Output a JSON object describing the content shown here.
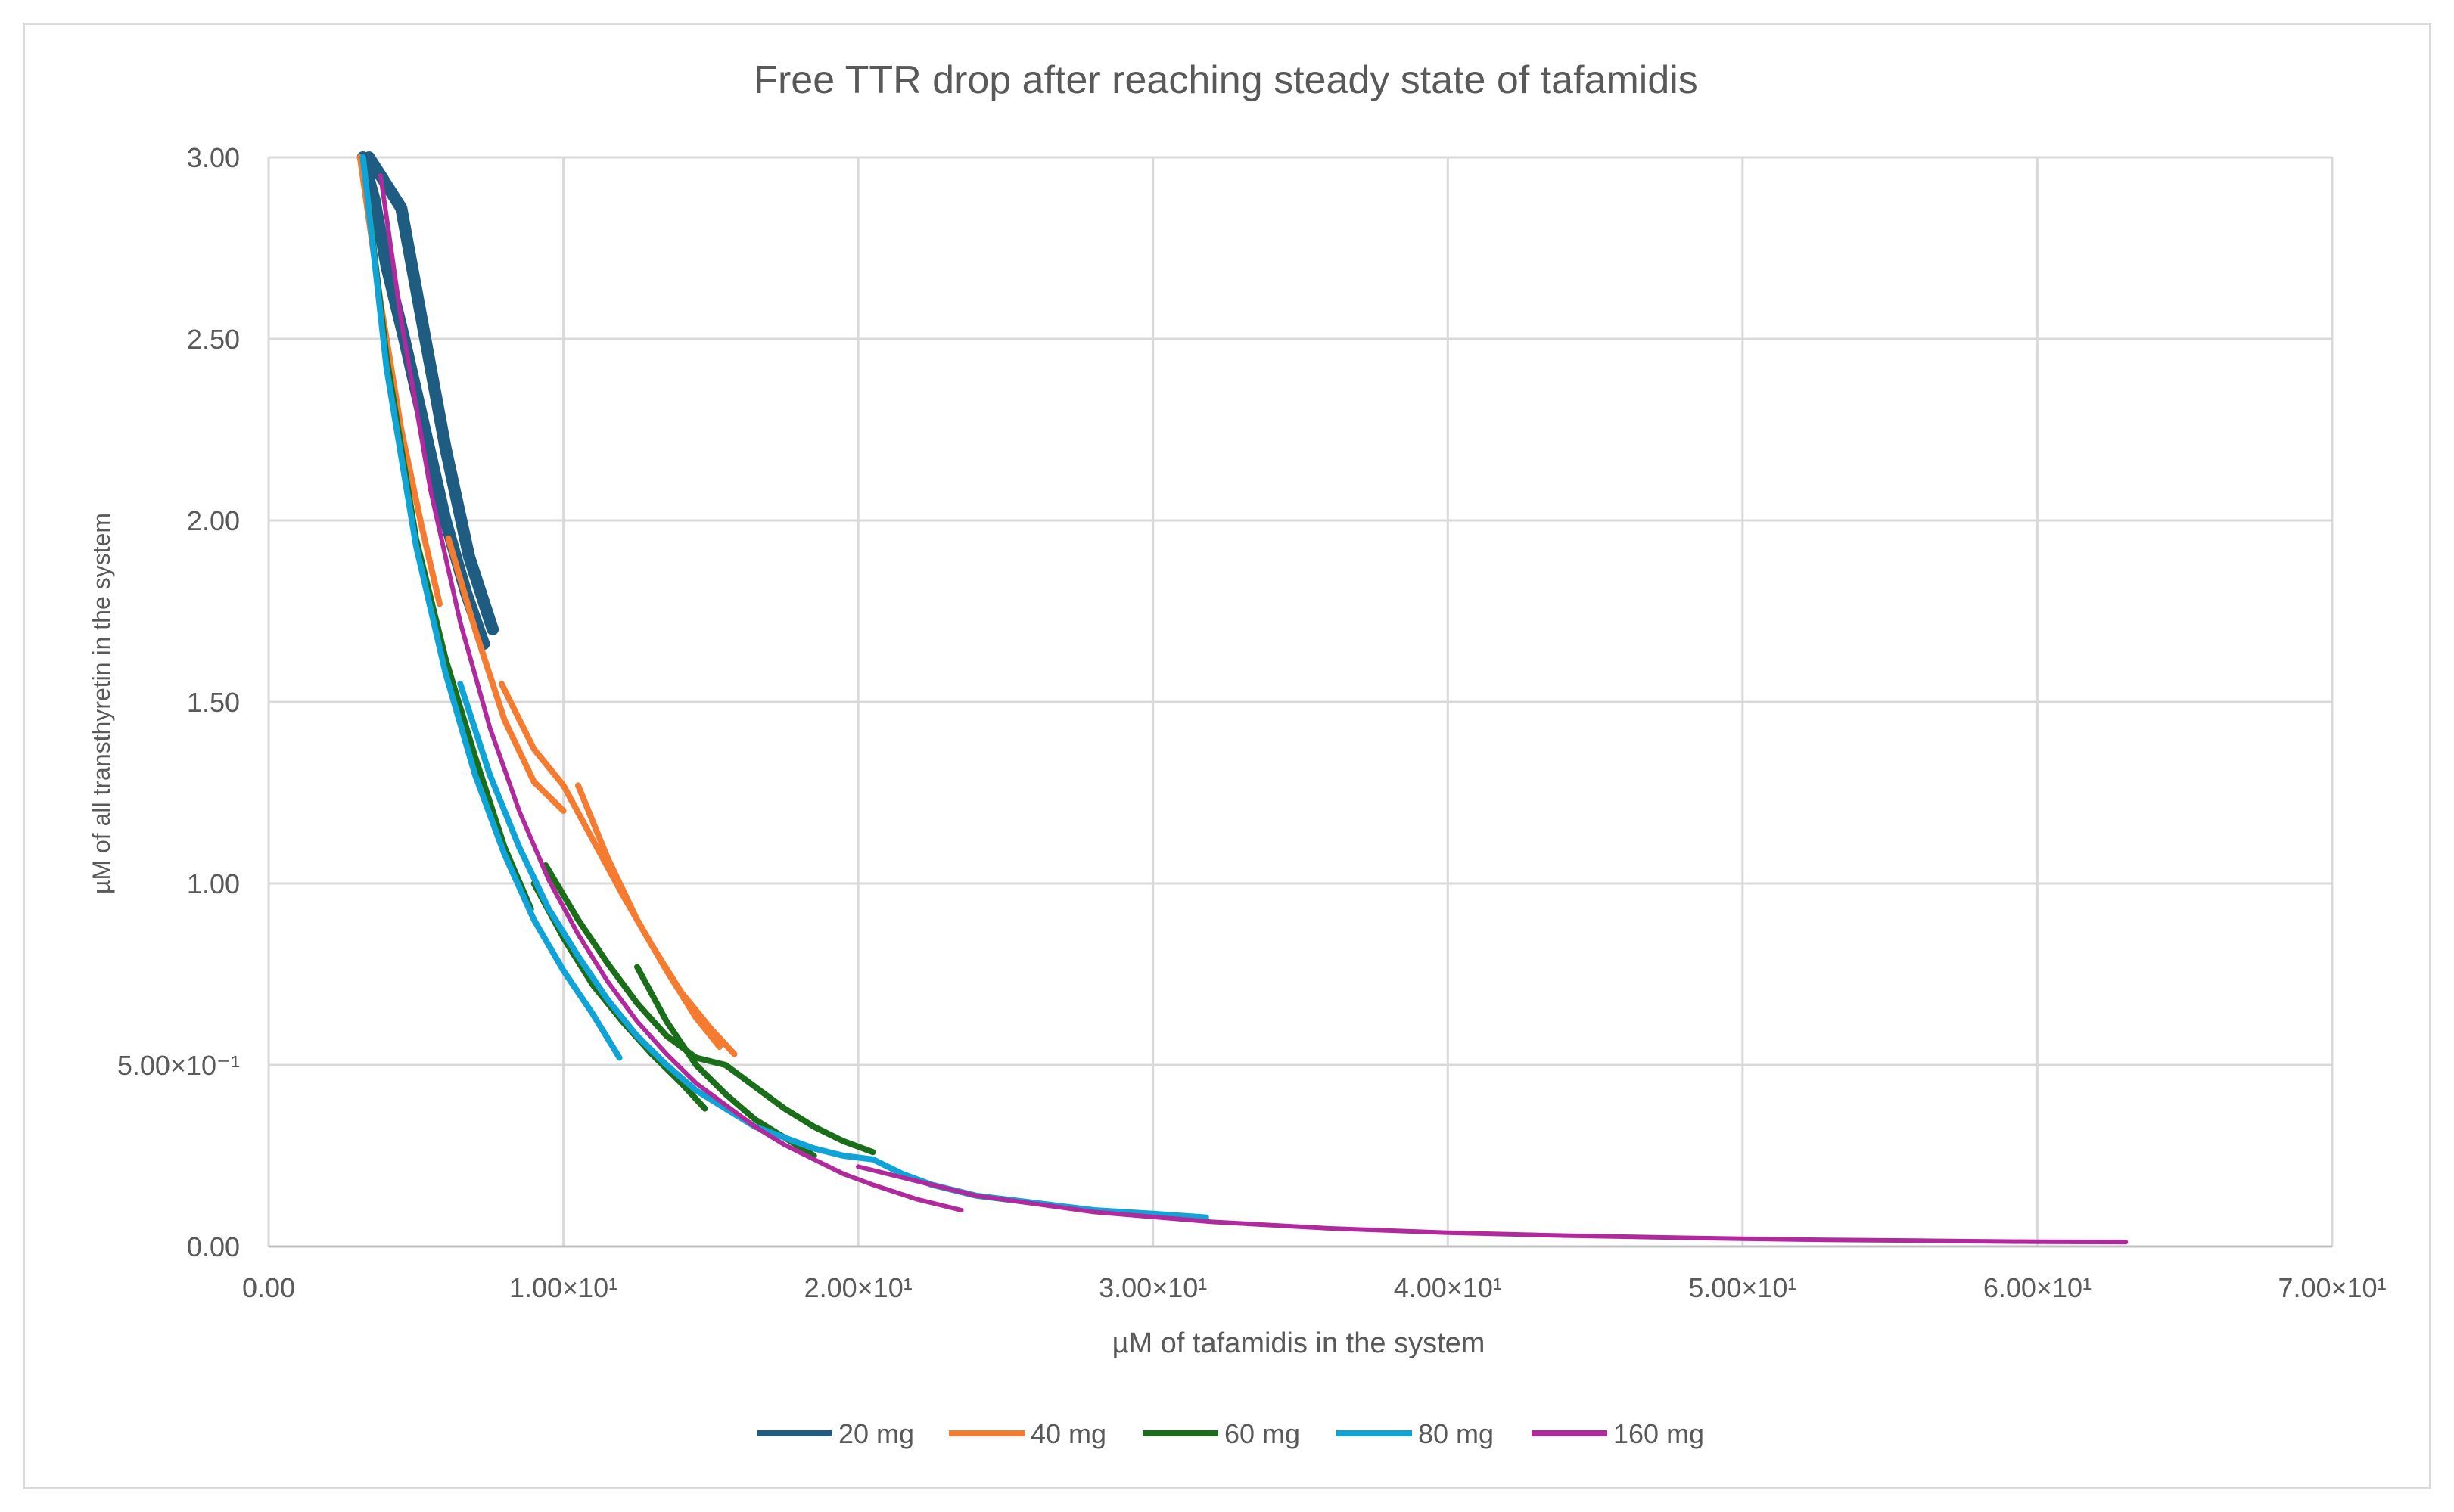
{
  "chart_data": {
    "type": "line",
    "title": "Free TTR drop after reaching steady state of tafamidis",
    "xlabel": "µM of tafamidis in the system",
    "ylabel": "µM of all transthyretin in the system",
    "xlim": [
      0,
      70
    ],
    "ylim": [
      0,
      3
    ],
    "x_ticks": [
      0,
      10,
      20,
      30,
      40,
      50,
      60,
      70
    ],
    "x_tick_labels": [
      "0.00",
      "1.00×10¹",
      "2.00×10¹",
      "3.00×10¹",
      "4.00×10¹",
      "5.00×10¹",
      "6.00×10¹",
      "7.00×10¹"
    ],
    "y_ticks": [
      0,
      0.5,
      1,
      1.5,
      2,
      2.5,
      3
    ],
    "y_tick_labels": [
      "0.00",
      "5.00×10⁻¹",
      "1.00",
      "1.50",
      "2.00",
      "2.50",
      "3.00"
    ],
    "grid": true,
    "legend_position": "bottom",
    "series": [
      {
        "name": "20 mg",
        "color": "#1f5c82",
        "bands": [
          {
            "x": [
              3.4,
              3.8,
              4.5,
              5.2,
              6.0,
              6.8,
              7.6
            ],
            "y": [
              3.0,
              2.95,
              2.86,
              2.55,
              2.2,
              1.9,
              1.7
            ]
          },
          {
            "x": [
              3.2,
              3.6,
              4.0,
              4.6,
              5.3,
              6.0,
              6.7,
              7.3
            ],
            "y": [
              3.0,
              2.88,
              2.7,
              2.5,
              2.25,
              2.0,
              1.8,
              1.66
            ]
          }
        ]
      },
      {
        "name": "40 mg",
        "color": "#f47b2f",
        "bands": [
          {
            "x": [
              3.1,
              3.8,
              4.5,
              5.2,
              5.8
            ],
            "y": [
              3.0,
              2.6,
              2.25,
              1.98,
              1.77
            ]
          },
          {
            "x": [
              6.1,
              7.0,
              8.0,
              9.0,
              10.0
            ],
            "y": [
              1.95,
              1.7,
              1.45,
              1.28,
              1.2
            ]
          },
          {
            "x": [
              7.9,
              9.0,
              10.0,
              11.0,
              12.0,
              13.0,
              14.0,
              15.0,
              15.8
            ],
            "y": [
              1.55,
              1.37,
              1.27,
              1.12,
              0.97,
              0.83,
              0.7,
              0.6,
              0.53
            ]
          },
          {
            "x": [
              10.5,
              11.5,
              12.5,
              13.5,
              14.5,
              15.3
            ],
            "y": [
              1.27,
              1.07,
              0.9,
              0.76,
              0.63,
              0.55
            ]
          }
        ]
      },
      {
        "name": "60 mg",
        "color": "#1a6e1a",
        "bands": [
          {
            "x": [
              3.2,
              4.0,
              5.0,
              6.0,
              7.0,
              8.0,
              8.9
            ],
            "y": [
              3.0,
              2.45,
              1.95,
              1.62,
              1.35,
              1.1,
              0.93
            ]
          },
          {
            "x": [
              9.4,
              10.5,
              11.5,
              12.5,
              13.5,
              14.5,
              15.5,
              16.5,
              17.5,
              18.5,
              19.5,
              20.5
            ],
            "y": [
              1.05,
              0.9,
              0.78,
              0.67,
              0.58,
              0.52,
              0.5,
              0.44,
              0.38,
              0.33,
              0.29,
              0.26
            ]
          },
          {
            "x": [
              12.5,
              13.5,
              14.5,
              15.5,
              16.5,
              17.5,
              18.5
            ],
            "y": [
              0.77,
              0.62,
              0.5,
              0.42,
              0.35,
              0.3,
              0.25
            ]
          },
          {
            "x": [
              9.0,
              10.0,
              11.0,
              12.0,
              13.0,
              14.0,
              14.8
            ],
            "y": [
              1.0,
              0.85,
              0.72,
              0.62,
              0.53,
              0.45,
              0.38
            ]
          }
        ]
      },
      {
        "name": "80 mg",
        "color": "#0fa3d8",
        "bands": [
          {
            "x": [
              3.2,
              4.0,
              5.0,
              6.0,
              7.0,
              8.0,
              9.0,
              10.0,
              11.0,
              11.9
            ],
            "y": [
              3.0,
              2.42,
              1.93,
              1.58,
              1.3,
              1.08,
              0.9,
              0.76,
              0.64,
              0.52
            ]
          },
          {
            "x": [
              6.5,
              7.5,
              8.5,
              9.5,
              10.5,
              11.5,
              12.5,
              13.5,
              14.5,
              15.5,
              16.5,
              17.5,
              18.5,
              19.5,
              20.5,
              21.5,
              22.5,
              24.0,
              26.0,
              28.0,
              30.0,
              31.8
            ],
            "y": [
              1.55,
              1.3,
              1.1,
              0.93,
              0.8,
              0.68,
              0.58,
              0.5,
              0.43,
              0.38,
              0.33,
              0.3,
              0.27,
              0.25,
              0.24,
              0.2,
              0.17,
              0.14,
              0.12,
              0.1,
              0.09,
              0.08
            ]
          }
        ]
      },
      {
        "name": "160 mg",
        "color": "#b02a9e",
        "bands": [
          {
            "x": [
              3.8,
              4.5,
              5.5,
              6.5,
              7.5,
              8.5,
              9.5,
              10.5,
              11.5,
              12.5,
              13.5,
              14.5,
              15.5,
              16.5,
              17.5,
              18.5,
              19.5,
              20.5,
              22.0,
              23.5
            ],
            "y": [
              2.95,
              2.55,
              2.08,
              1.72,
              1.43,
              1.2,
              1.01,
              0.86,
              0.73,
              0.62,
              0.53,
              0.45,
              0.39,
              0.33,
              0.28,
              0.24,
              0.2,
              0.17,
              0.13,
              0.1
            ]
          },
          {
            "x": [
              20.0,
              24.0,
              28.0,
              32.0,
              36.0,
              40.0,
              44.0,
              48.0,
              52.0,
              56.0,
              60.0,
              63.0
            ],
            "y": [
              0.22,
              0.14,
              0.095,
              0.068,
              0.05,
              0.038,
              0.03,
              0.024,
              0.019,
              0.016,
              0.013,
              0.012
            ]
          }
        ]
      }
    ]
  }
}
